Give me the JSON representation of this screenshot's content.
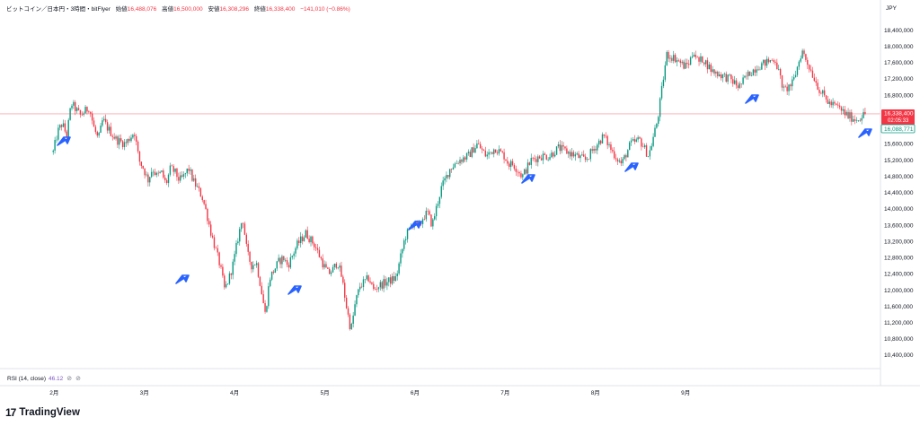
{
  "header": {
    "symbol": "ビットコイン／日本円・3時間・bitFlyer",
    "open_label": "始値",
    "open_value": "16,488,076",
    "high_label": "高値",
    "high_value": "16,500,000",
    "low_label": "安値",
    "low_value": "16,308,296",
    "close_label": "終値",
    "close_value": "16,338,400",
    "change": "−141,010 (−0.86%)"
  },
  "currency": "JPY",
  "price_badge": {
    "price": "16,338,400",
    "countdown": "02:05:33"
  },
  "secondary_badge": "16,088,771",
  "rsi": {
    "label": "RSI (14, close)",
    "value": "46.12",
    "icon1": "⊘",
    "icon2": "⊘"
  },
  "brand": {
    "logo": "17",
    "name": "TradingView"
  },
  "colors": {
    "up": "#089981",
    "down": "#f23645",
    "arrow": "#2962ff",
    "price_line": "#f23645"
  },
  "chart_data": {
    "type": "line",
    "title": "",
    "xlabel": "",
    "ylabel": "",
    "x_tick_labels": [
      "2月",
      "3月",
      "4月",
      "5月",
      "6月",
      "7月",
      "8月",
      "9月"
    ],
    "y_tick_labels": [
      "10,400,000",
      "10,800,000",
      "11,200,000",
      "11,600,000",
      "12,000,000",
      "12,400,000",
      "12,800,000",
      "13,200,000",
      "13,600,000",
      "14,000,000",
      "14,400,000",
      "14,800,000",
      "15,200,000",
      "15,600,000",
      "16,000,000",
      "16,400,000",
      "16,800,000",
      "17,200,000",
      "17,600,000",
      "18,000,000",
      "18,400,000"
    ],
    "ylim": [
      10200000,
      18700000
    ],
    "x": [
      0.0,
      0.05,
      0.1,
      0.15,
      0.2,
      0.3,
      0.4,
      0.45,
      0.5,
      0.55,
      0.6,
      0.7,
      0.8,
      0.9,
      0.95,
      1.0,
      1.05,
      1.1,
      1.15,
      1.2,
      1.25,
      1.3,
      1.35,
      1.4,
      1.45,
      1.5,
      1.55,
      1.6,
      1.65,
      1.7,
      1.75,
      1.8,
      1.85,
      1.9,
      1.95,
      2.0,
      2.05,
      2.1,
      2.15,
      2.2,
      2.25,
      2.3,
      2.35,
      2.4,
      2.45,
      2.5,
      2.55,
      2.6,
      2.7,
      2.8,
      2.9,
      3.0,
      3.05,
      3.1,
      3.15,
      3.2,
      3.25,
      3.3,
      3.35,
      3.4,
      3.45,
      3.5,
      3.55,
      3.6,
      3.7,
      3.8,
      3.9,
      4.0,
      4.05,
      4.1,
      4.15,
      4.2,
      4.3,
      4.4,
      4.5,
      4.6,
      4.7,
      4.8,
      4.9,
      5.0,
      5.05,
      5.1,
      5.2,
      5.3,
      5.4,
      5.5,
      5.6,
      5.7,
      5.8,
      5.9,
      6.0,
      6.1,
      6.2,
      6.3,
      6.4,
      6.5,
      6.6,
      6.7,
      6.8,
      6.9,
      7.0,
      7.05,
      7.1,
      7.15,
      7.2,
      7.3,
      7.4,
      7.5,
      7.6,
      7.7,
      7.8,
      7.9,
      8.0,
      8.1,
      8.2,
      8.3,
      8.4,
      8.5,
      8.6,
      8.7,
      8.8,
      8.9,
      9.0
    ],
    "series": [
      {
        "values": [
          15400000,
          15900000,
          16100000,
          15800000,
          16600000,
          16300000,
          16500000,
          16000000,
          15700000,
          16200000,
          16000000,
          15700000,
          15600000,
          15900000,
          15200000,
          15000000,
          14700000,
          15000000,
          14800000,
          14900000,
          14600000,
          15000000,
          14900000,
          14700000,
          14800000,
          15000000,
          14700000,
          14500000,
          14300000,
          13900000,
          13400000,
          13000000,
          12600000,
          12000000,
          12300000,
          12700000,
          13300000,
          13800000,
          12900000,
          12600000,
          12700000,
          12100000,
          11400000,
          12300000,
          12500000,
          12700000,
          12800000,
          12600000,
          13100000,
          13400000,
          13100000,
          12600000,
          12400000,
          12500000,
          12700000,
          12300000,
          11600000,
          11000000,
          11700000,
          12100000,
          12200000,
          12300000,
          12000000,
          12100000,
          12200000,
          12300000,
          13300000,
          13700000,
          13500000,
          13800000,
          13900000,
          13600000,
          14500000,
          15000000,
          15200000,
          15300000,
          15600000,
          15300000,
          15500000,
          15300000,
          15100000,
          15100000,
          14800000,
          15200000,
          15300000,
          15300000,
          15500000,
          15400000,
          15300000,
          15200000,
          15500000,
          15800000,
          15400000,
          15100000,
          15600000,
          15700000,
          15300000,
          16200000,
          17800000,
          17700000,
          17500000,
          17600000,
          17900000,
          17600000,
          17700000,
          17400000,
          17300000,
          17200000,
          17000000,
          17300000,
          17500000,
          17600000,
          17700000,
          16900000,
          17100000,
          17900000,
          17400000,
          16900000,
          16600000,
          16500000,
          16300000,
          16200000,
          16340000
        ]
      }
    ]
  }
}
